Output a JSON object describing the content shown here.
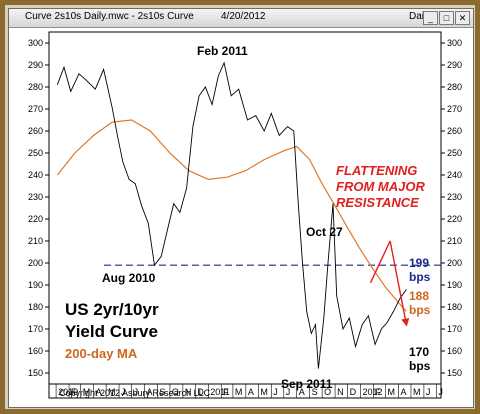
{
  "window": {
    "title": "Curve 2s10s Daily.mwc - 2s10s Curve",
    "date": "4/20/2012",
    "period": "Daily",
    "buttons": {
      "minimize": "_",
      "maximize": "□",
      "close": "✕"
    }
  },
  "chart_data": {
    "type": "line",
    "series": [
      {
        "x": [
          "2010-01-04",
          "2010-01-20",
          "2010-02-05",
          "2010-02-25",
          "2010-03-15",
          "2010-04-05",
          "2010-04-25",
          "2010-05-15",
          "2010-05-28",
          "2010-06-10",
          "2010-06-25",
          "2010-07-10",
          "2010-07-25",
          "2010-08-10",
          "2010-08-25",
          "2010-09-10",
          "2010-09-25",
          "2010-10-10",
          "2010-10-25",
          "2010-11-10",
          "2010-11-25",
          "2010-12-10",
          "2010-12-25",
          "2011-01-10",
          "2011-01-25",
          "2011-02-08",
          "2011-02-25",
          "2011-03-15",
          "2011-04-05",
          "2011-04-25",
          "2011-05-15",
          "2011-06-01",
          "2011-06-20",
          "2011-07-10",
          "2011-07-25",
          "2011-08-05",
          "2011-08-15",
          "2011-08-25",
          "2011-09-05",
          "2011-09-15",
          "2011-09-22",
          "2011-10-05",
          "2011-10-15",
          "2011-10-27",
          "2011-11-05",
          "2011-11-20",
          "2011-12-05",
          "2011-12-20",
          "2012-01-05",
          "2012-01-20",
          "2012-02-05",
          "2012-02-20",
          "2012-03-05",
          "2012-03-20",
          "2012-04-05",
          "2012-04-20"
        ],
        "y": [
          281,
          289,
          278,
          286,
          283,
          279,
          288,
          271,
          258,
          246,
          238,
          236,
          226,
          218,
          199,
          203,
          215,
          227,
          223,
          234,
          262,
          276,
          280,
          272,
          285,
          291,
          276,
          279,
          265,
          267,
          260,
          268,
          258,
          262,
          260,
          226,
          200,
          178,
          168,
          172,
          152,
          175,
          200,
          227,
          185,
          170,
          175,
          162,
          172,
          176,
          163,
          170,
          173,
          178,
          184,
          188
        ]
      },
      {
        "name": "200-day MA",
        "x": [
          "2010-01-04",
          "2010-02-15",
          "2010-04-01",
          "2010-05-15",
          "2010-07-01",
          "2010-08-15",
          "2010-10-01",
          "2010-11-15",
          "2011-01-01",
          "2011-02-15",
          "2011-04-01",
          "2011-05-15",
          "2011-07-01",
          "2011-08-01",
          "2011-09-01",
          "2011-10-01",
          "2011-11-01",
          "2011-12-01",
          "2012-01-01",
          "2012-02-01",
          "2012-03-01",
          "2012-04-01",
          "2012-04-20"
        ],
        "y": [
          240,
          250,
          258,
          264,
          265,
          260,
          250,
          242,
          238,
          239,
          242,
          247,
          251,
          253,
          247,
          236,
          226,
          216,
          206,
          197,
          189,
          182,
          178
        ]
      }
    ],
    "y_ticks": [
      150,
      160,
      170,
      180,
      190,
      200,
      210,
      220,
      230,
      240,
      250,
      260,
      270,
      280,
      290,
      300
    ],
    "ylim": [
      145,
      305
    ],
    "x_range": [
      "2009-12-15",
      "2012-07-12"
    ],
    "x_ticks": [
      {
        "date": "2010-01-01",
        "label": "2010"
      },
      {
        "date": "2010-02-01",
        "label": "F"
      },
      {
        "date": "2010-03-01",
        "label": "M"
      },
      {
        "date": "2010-04-01",
        "label": "A"
      },
      {
        "date": "2010-05-01",
        "label": "M"
      },
      {
        "date": "2010-06-01",
        "label": "J"
      },
      {
        "date": "2010-07-01",
        "label": "J"
      },
      {
        "date": "2010-08-01",
        "label": "A"
      },
      {
        "date": "2010-09-01",
        "label": "S"
      },
      {
        "date": "2010-10-01",
        "label": "O"
      },
      {
        "date": "2010-11-01",
        "label": "N"
      },
      {
        "date": "2010-12-01",
        "label": "D"
      },
      {
        "date": "2011-01-01",
        "label": "2011"
      },
      {
        "date": "2011-02-01",
        "label": "F"
      },
      {
        "date": "2011-03-01",
        "label": "M"
      },
      {
        "date": "2011-04-01",
        "label": "A"
      },
      {
        "date": "2011-05-01",
        "label": "M"
      },
      {
        "date": "2011-06-01",
        "label": "J"
      },
      {
        "date": "2011-07-01",
        "label": "J"
      },
      {
        "date": "2011-08-01",
        "label": "A"
      },
      {
        "date": "2011-09-01",
        "label": "S"
      },
      {
        "date": "2011-10-01",
        "label": "O"
      },
      {
        "date": "2011-11-01",
        "label": "N"
      },
      {
        "date": "2011-12-01",
        "label": "D"
      },
      {
        "date": "2012-01-01",
        "label": "2012"
      },
      {
        "date": "2012-02-01",
        "label": "F"
      },
      {
        "date": "2012-03-01",
        "label": "M"
      },
      {
        "date": "2012-04-01",
        "label": "A"
      },
      {
        "date": "2012-05-01",
        "label": "M"
      },
      {
        "date": "2012-06-01",
        "label": "J"
      },
      {
        "date": "2012-07-01",
        "label": "J"
      }
    ],
    "resistance_level": 199,
    "trend_arrows": [
      {
        "x": [
          "2012-01-25",
          "2012-03-12"
        ],
        "y": [
          191,
          210
        ]
      },
      {
        "x": [
          "2012-03-12",
          "2012-04-20"
        ],
        "y": [
          210,
          172
        ]
      }
    ],
    "colors": {
      "price": "#000000",
      "ma": "#e07828",
      "resistance": "#1c2a8a",
      "arrow": "#e0201c",
      "annotation_red": "#e0201c",
      "annotation_orange": "#d06520"
    },
    "annotations": {
      "peak_label": "Feb 2011",
      "low_label_1": "Aug 2010",
      "low_label_2": "Sep 2011",
      "spike_label": "Oct 27",
      "flattening": [
        "FLATTENING",
        "FROM MAJOR",
        "RESISTANCE"
      ],
      "title_lines": [
        "US 2yr/10yr",
        "Yield Curve"
      ],
      "ma_label": "200-day MA",
      "level_199": [
        "199",
        "bps"
      ],
      "level_188": [
        "188",
        "bps"
      ],
      "level_170": [
        "170",
        "bps"
      ],
      "copyright": "Copyright 2012 Asbury Research LLC"
    }
  }
}
